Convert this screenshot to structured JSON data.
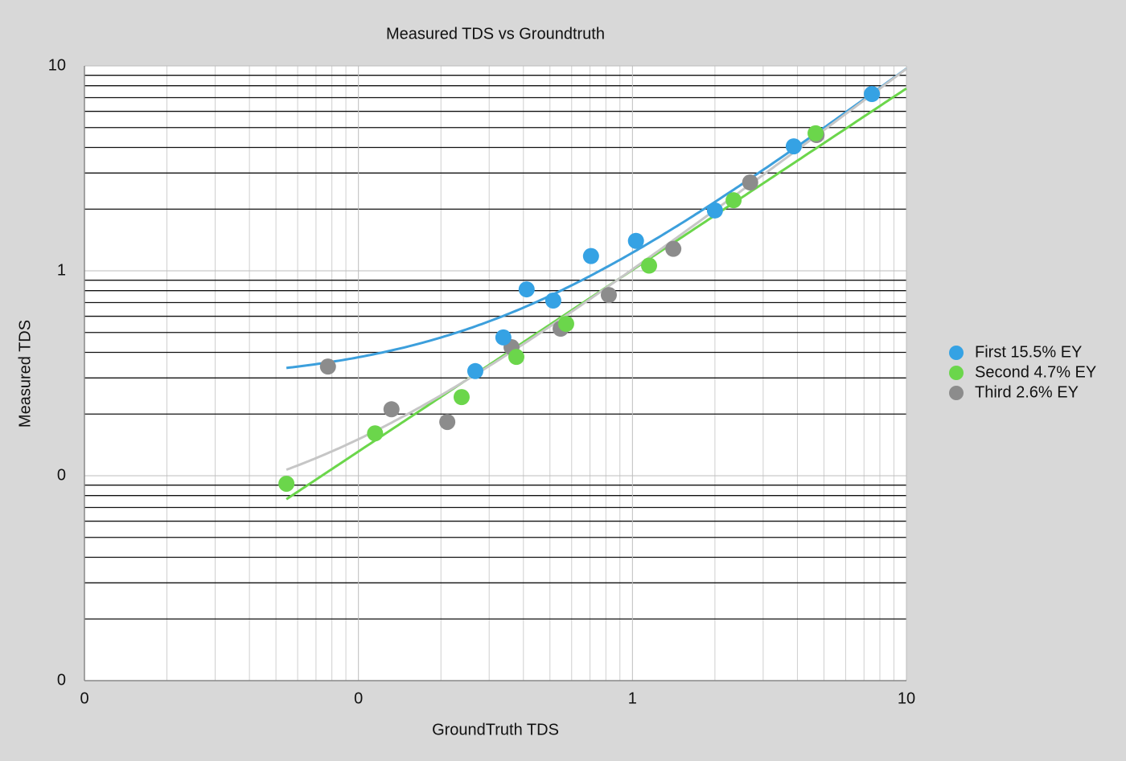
{
  "chart_data": {
    "type": "scatter",
    "title": "Measured TDS vs Groundtruth",
    "x_label": "GroundTruth TDS",
    "y_label": "Measured TDS",
    "log_x": true,
    "log_y": true,
    "grid": true,
    "minor_grid": true,
    "legend": "right",
    "xlim": [
      0.01,
      10
    ],
    "ylim": [
      0.01,
      10
    ],
    "xticks": [
      {
        "value": 0.01,
        "label": "0"
      },
      {
        "value": 0.1,
        "label": "0"
      },
      1,
      10
    ],
    "yticks": [
      {
        "value": 0.01,
        "label": "0"
      },
      {
        "value": 0.1,
        "label": "0"
      },
      1,
      10
    ],
    "series": [
      {
        "name": "First 15.5% EY",
        "color": "#35a2e4",
        "trendline": "linear",
        "trend_color": "#3c9fdc",
        "x": [
          0.267,
          0.338,
          0.411,
          0.514,
          0.706,
          1.03,
          2.0,
          3.88,
          7.48
        ],
        "values": [
          0.324,
          0.473,
          0.812,
          0.716,
          1.18,
          1.4,
          1.97,
          4.05,
          7.29
        ]
      },
      {
        "name": "Second 4.7% EY",
        "color": "#6bd64b",
        "trendline": "power",
        "trend_color": "#6bd64b",
        "x": [
          0.0546,
          0.115,
          0.238,
          0.377,
          0.573,
          1.15,
          2.34,
          4.66
        ],
        "values": [
          0.0914,
          0.161,
          0.242,
          0.38,
          0.551,
          1.06,
          2.21,
          4.69
        ]
      },
      {
        "name": "Third 2.6% EY",
        "color": "#8c8c8c",
        "trendline": "linear",
        "trend_color": "#c6c6c6",
        "x": [
          0.0774,
          0.132,
          0.211,
          0.362,
          0.547,
          0.82,
          1.41,
          2.69,
          4.7
        ],
        "values": [
          0.341,
          0.211,
          0.183,
          0.424,
          0.522,
          0.762,
          1.28,
          2.7,
          4.6
        ]
      }
    ]
  }
}
